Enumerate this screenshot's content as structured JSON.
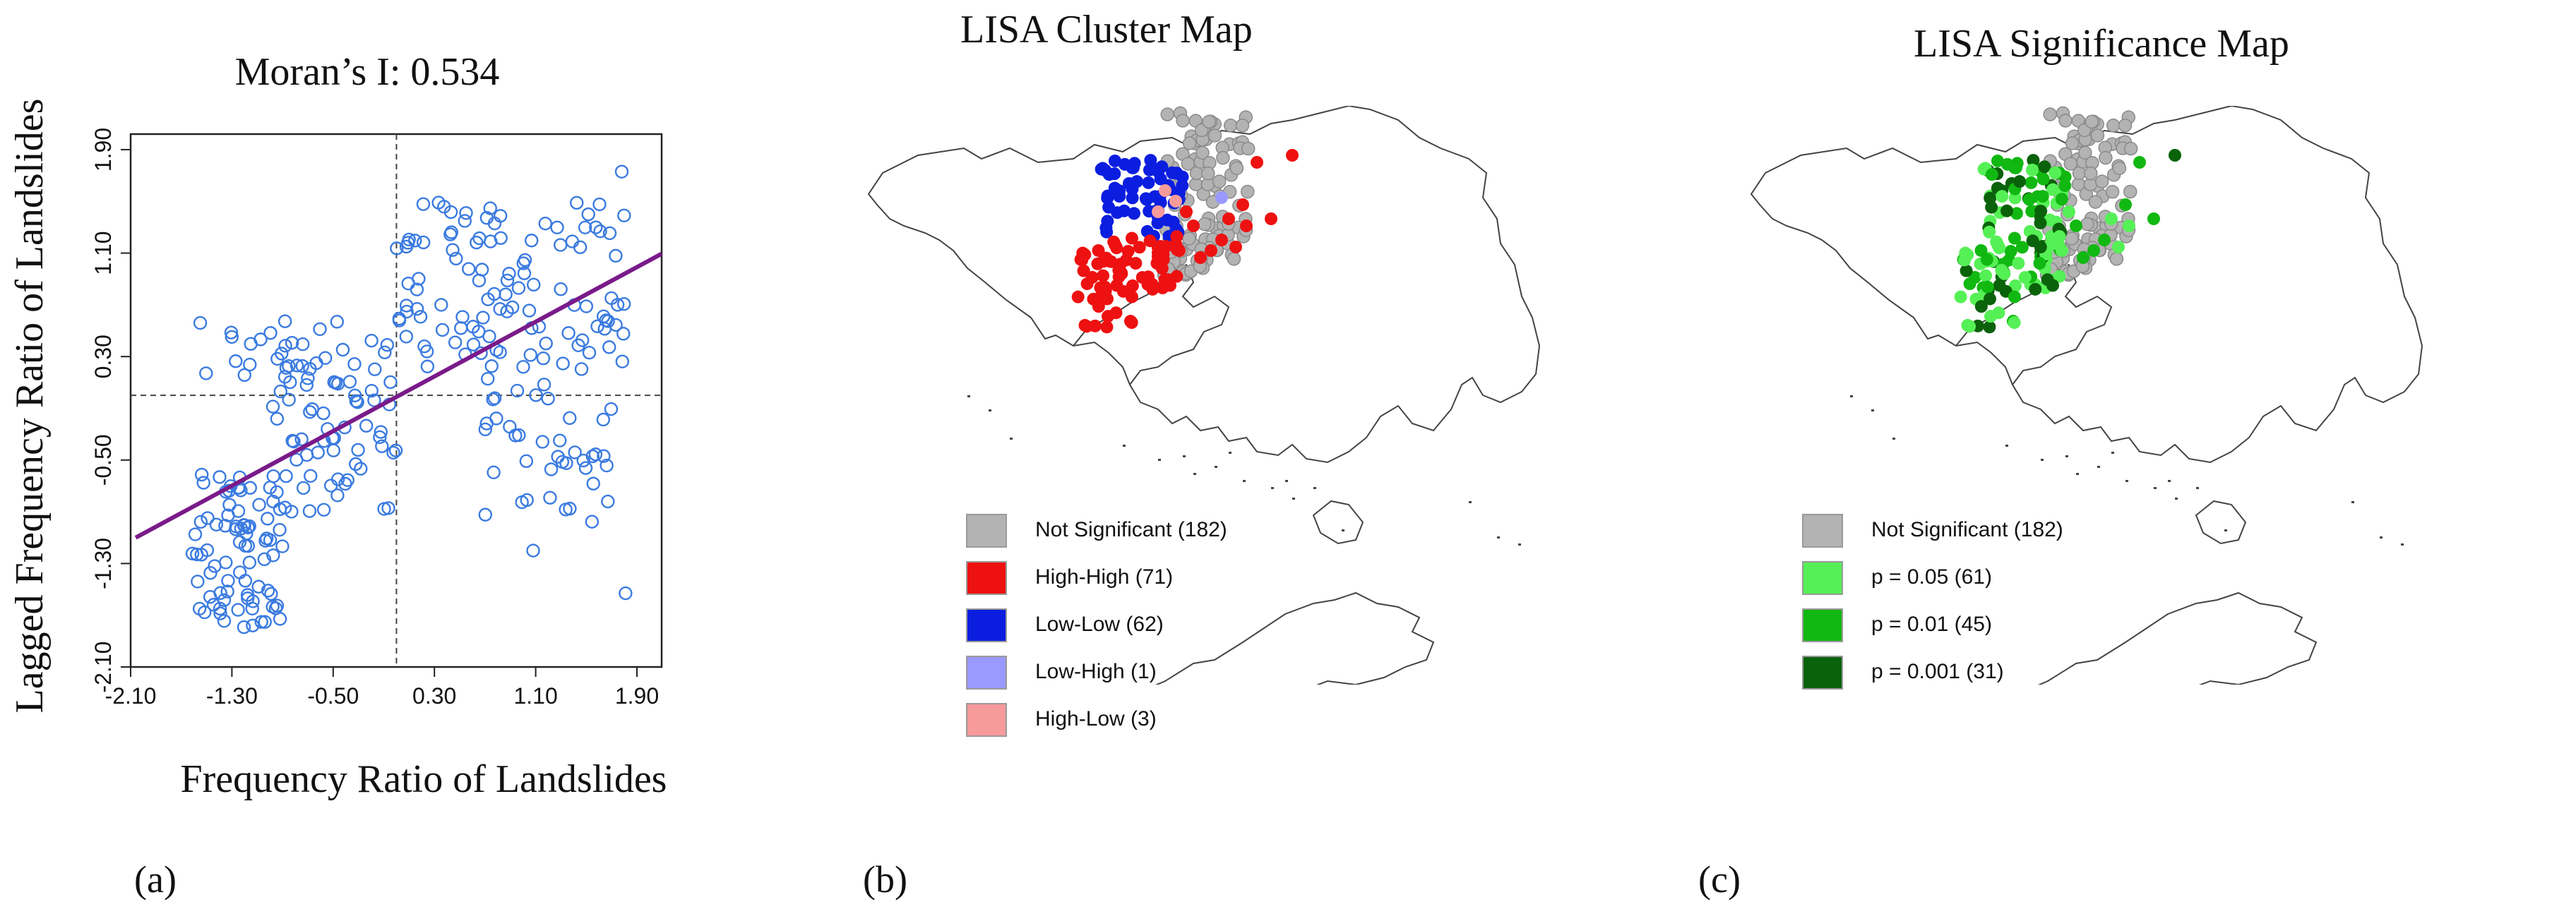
{
  "chart_data": [
    {
      "type": "scatter",
      "title": "Moran’s I: 0.534",
      "xlabel": "Frequency Ratio of Landslides",
      "ylabel": "Lagged Frequency Ratio of Landslides",
      "xlim": [
        -2.1,
        2.1
      ],
      "ylim": [
        -2.1,
        2.1
      ],
      "xticks": [
        "-2.10",
        "-1.30",
        "-0.50",
        "0.30",
        "1.10",
        "1.90"
      ],
      "yticks": [
        "-2.10",
        "-1.30",
        "-0.50",
        "0.30",
        "1.10",
        "1.90"
      ],
      "regression_line": {
        "slope": 0.534,
        "intercept": 0.0,
        "color": "#7a1a8a"
      },
      "reference_lines": {
        "x": 0.0,
        "y": 0.0
      },
      "point_color": "#3b7be0",
      "n_points": 319,
      "point_groups": [
        {
          "x_range": [
            -1.65,
            -0.9
          ],
          "y_range": [
            -1.8,
            -0.6
          ],
          "count": 80
        },
        {
          "x_range": [
            -1.0,
            0.0
          ],
          "y_range": [
            -0.9,
            0.45
          ],
          "count": 70
        },
        {
          "x_range": [
            0.0,
            1.8
          ],
          "y_range": [
            0.2,
            1.5
          ],
          "count": 110
        },
        {
          "x_range": [
            0.7,
            1.7
          ],
          "y_range": [
            -1.0,
            0.2
          ],
          "count": 40
        },
        {
          "x_range": [
            -1.6,
            -0.4
          ],
          "y_range": [
            0.0,
            0.6
          ],
          "count": 19
        }
      ],
      "notable_points": [
        {
          "x": 1.78,
          "y": 1.73
        },
        {
          "x": 1.81,
          "y": -1.53
        },
        {
          "x": 1.08,
          "y": -1.2
        },
        {
          "x": 0.55,
          "y": 1.41
        },
        {
          "x": -1.55,
          "y": 0.56
        }
      ]
    },
    {
      "type": "map",
      "title": "LISA Cluster Map",
      "legend": [
        {
          "label": "Not Significant (182)",
          "color": "#b3b3b3"
        },
        {
          "label": "High-High (71)",
          "color": "#ee1111"
        },
        {
          "label": "Low-Low (62)",
          "color": "#0b1ee0"
        },
        {
          "label": "Low-High (1)",
          "color": "#9999ff"
        },
        {
          "label": "High-Low (3)",
          "color": "#f79a9a"
        }
      ]
    },
    {
      "type": "map",
      "title": "LISA Significance Map",
      "legend": [
        {
          "label": "Not Significant (182)",
          "color": "#b3b3b3"
        },
        {
          "label": "p = 0.05 (61)",
          "color": "#55f055"
        },
        {
          "label": "p = 0.01 (45)",
          "color": "#12b812"
        },
        {
          "label": "p = 0.001 (31)",
          "color": "#0a620a"
        }
      ]
    }
  ],
  "panel_labels": [
    "(a)",
    "(b)",
    "(c)"
  ]
}
